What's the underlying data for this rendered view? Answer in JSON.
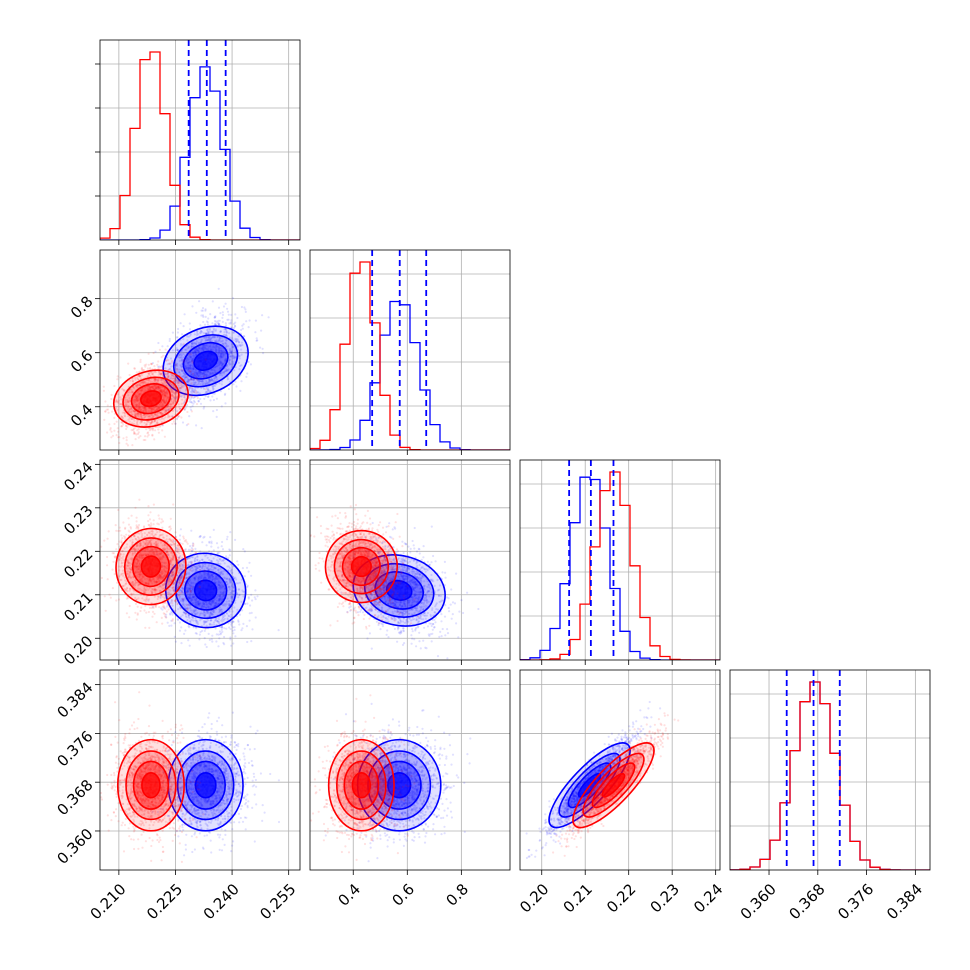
{
  "chart_data": {
    "type": "corner",
    "grid": true,
    "series": [
      {
        "color": "#0000ff",
        "mean": [
          0.233,
          0.57,
          0.211,
          0.3675
        ],
        "std": [
          0.0045,
          0.07,
          0.0042,
          0.0034
        ],
        "corr": {
          "0-1": 0.4,
          "0-2": -0.15,
          "1-2": -0.25,
          "2-3": 0.93
        }
      },
      {
        "color": "#ff0000",
        "mean": [
          0.2185,
          0.43,
          0.2165,
          0.3675
        ],
        "std": [
          0.004,
          0.055,
          0.0042,
          0.0034
        ],
        "corr": {
          "0-1": 0.3,
          "0-2": -0.1,
          "1-2": -0.2,
          "2-3": 0.93
        }
      }
    ],
    "quantiles_blue": [
      [
        0.2285,
        0.2333,
        0.2383
      ],
      [
        0.47,
        0.572,
        0.67
      ],
      [
        0.2063,
        0.2113,
        0.2165
      ],
      [
        0.3629,
        0.3673,
        0.3716
      ]
    ],
    "parameters": [
      {
        "range": [
          0.205,
          0.258
        ],
        "ticks": [
          0.21,
          0.225,
          0.24,
          0.255
        ],
        "tick_labels": [
          "0.210",
          "0.225",
          "0.240",
          "0.255"
        ]
      },
      {
        "range": [
          0.24,
          0.98
        ],
        "ticks": [
          0.4,
          0.6,
          0.8
        ],
        "tick_labels": [
          "0.4",
          "0.6",
          "0.8"
        ]
      },
      {
        "range": [
          0.195,
          0.241
        ],
        "ticks": [
          0.2,
          0.21,
          0.22,
          0.23,
          0.24
        ],
        "tick_labels": [
          "0.20",
          "0.21",
          "0.22",
          "0.23",
          "0.24"
        ]
      },
      {
        "range": [
          0.3536,
          0.3864
        ],
        "ticks": [
          0.36,
          0.368,
          0.376,
          0.384
        ],
        "tick_labels": [
          "0.360",
          "0.368",
          "0.376",
          "0.384"
        ]
      }
    ]
  }
}
